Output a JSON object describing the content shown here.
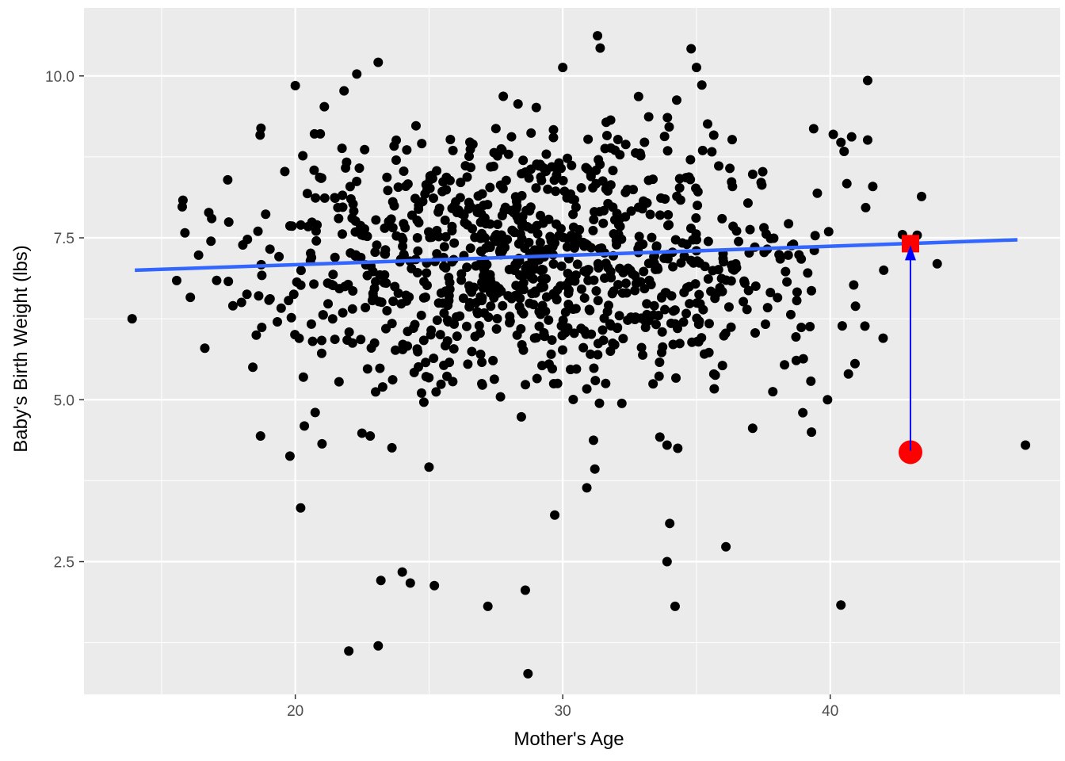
{
  "chart_data": {
    "type": "scatter",
    "xlabel": "Mother's Age",
    "ylabel": "Baby's Birth Weight (lbs)",
    "xlim": [
      12.1,
      48.6
    ],
    "ylim": [
      0.45,
      11.05
    ],
    "x_ticks": [
      20,
      30,
      40
    ],
    "x_tick_labels": [
      "20",
      "30",
      "40"
    ],
    "y_ticks": [
      2.5,
      5.0,
      7.5,
      10.0
    ],
    "y_tick_labels": [
      "2.5",
      "5.0",
      "7.5",
      "10.0"
    ],
    "x_minor_ticks": [
      15,
      25,
      35,
      45
    ],
    "y_minor_ticks": [
      1.25,
      3.75,
      6.25,
      8.75
    ],
    "grid": true,
    "legend": "none",
    "regression_line": {
      "x": [
        14,
        47
      ],
      "y": [
        7.0,
        7.47
      ]
    },
    "highlight": {
      "x": 43,
      "observed": 4.19,
      "fitted": 7.41
    },
    "outliers": [
      {
        "x": 13.9,
        "y": 6.25
      },
      {
        "x": 15.8,
        "y": 8.08
      },
      {
        "x": 22.0,
        "y": 1.12
      },
      {
        "x": 23.1,
        "y": 1.2
      },
      {
        "x": 28.7,
        "y": 0.77
      },
      {
        "x": 20.2,
        "y": 3.33
      },
      {
        "x": 23.2,
        "y": 2.21
      },
      {
        "x": 24.0,
        "y": 2.34
      },
      {
        "x": 24.3,
        "y": 2.17
      },
      {
        "x": 25.2,
        "y": 2.13
      },
      {
        "x": 27.2,
        "y": 1.81
      },
      {
        "x": 28.6,
        "y": 2.06
      },
      {
        "x": 29.7,
        "y": 3.22
      },
      {
        "x": 30.9,
        "y": 3.64
      },
      {
        "x": 33.9,
        "y": 2.5
      },
      {
        "x": 34.0,
        "y": 3.09
      },
      {
        "x": 34.2,
        "y": 1.81
      },
      {
        "x": 36.1,
        "y": 2.73
      },
      {
        "x": 40.4,
        "y": 1.83
      },
      {
        "x": 47.3,
        "y": 4.3
      },
      {
        "x": 44.0,
        "y": 7.1
      },
      {
        "x": 41.4,
        "y": 9.93
      },
      {
        "x": 40.8,
        "y": 9.06
      },
      {
        "x": 41.4,
        "y": 9.01
      },
      {
        "x": 31.3,
        "y": 10.62
      },
      {
        "x": 31.4,
        "y": 10.43
      },
      {
        "x": 34.8,
        "y": 10.42
      },
      {
        "x": 23.1,
        "y": 10.21
      },
      {
        "x": 22.3,
        "y": 10.03
      },
      {
        "x": 30.0,
        "y": 10.13
      },
      {
        "x": 35.0,
        "y": 10.13
      },
      {
        "x": 20.0,
        "y": 9.85
      },
      {
        "x": 35.2,
        "y": 9.86
      },
      {
        "x": 39.9,
        "y": 5.0
      },
      {
        "x": 39.3,
        "y": 4.5
      },
      {
        "x": 42.0,
        "y": 7.0
      },
      {
        "x": 42.7,
        "y": 7.55
      },
      {
        "x": 18.7,
        "y": 4.44
      },
      {
        "x": 19.8,
        "y": 4.13
      },
      {
        "x": 21.0,
        "y": 4.32
      },
      {
        "x": 22.8,
        "y": 4.44
      },
      {
        "x": 25.0,
        "y": 3.96
      },
      {
        "x": 31.2,
        "y": 3.93
      },
      {
        "x": 34.3,
        "y": 4.25
      },
      {
        "x": 33.9,
        "y": 4.3
      },
      {
        "x": 37.1,
        "y": 4.56
      }
    ],
    "cluster": {
      "count": 1000,
      "x_mean": 29.0,
      "x_sd": 5.6,
      "x_range": [
        15.5,
        43.5
      ],
      "y_mean": 7.2,
      "y_sd": 1.05,
      "y_range": [
        4.2,
        9.8
      ]
    }
  }
}
